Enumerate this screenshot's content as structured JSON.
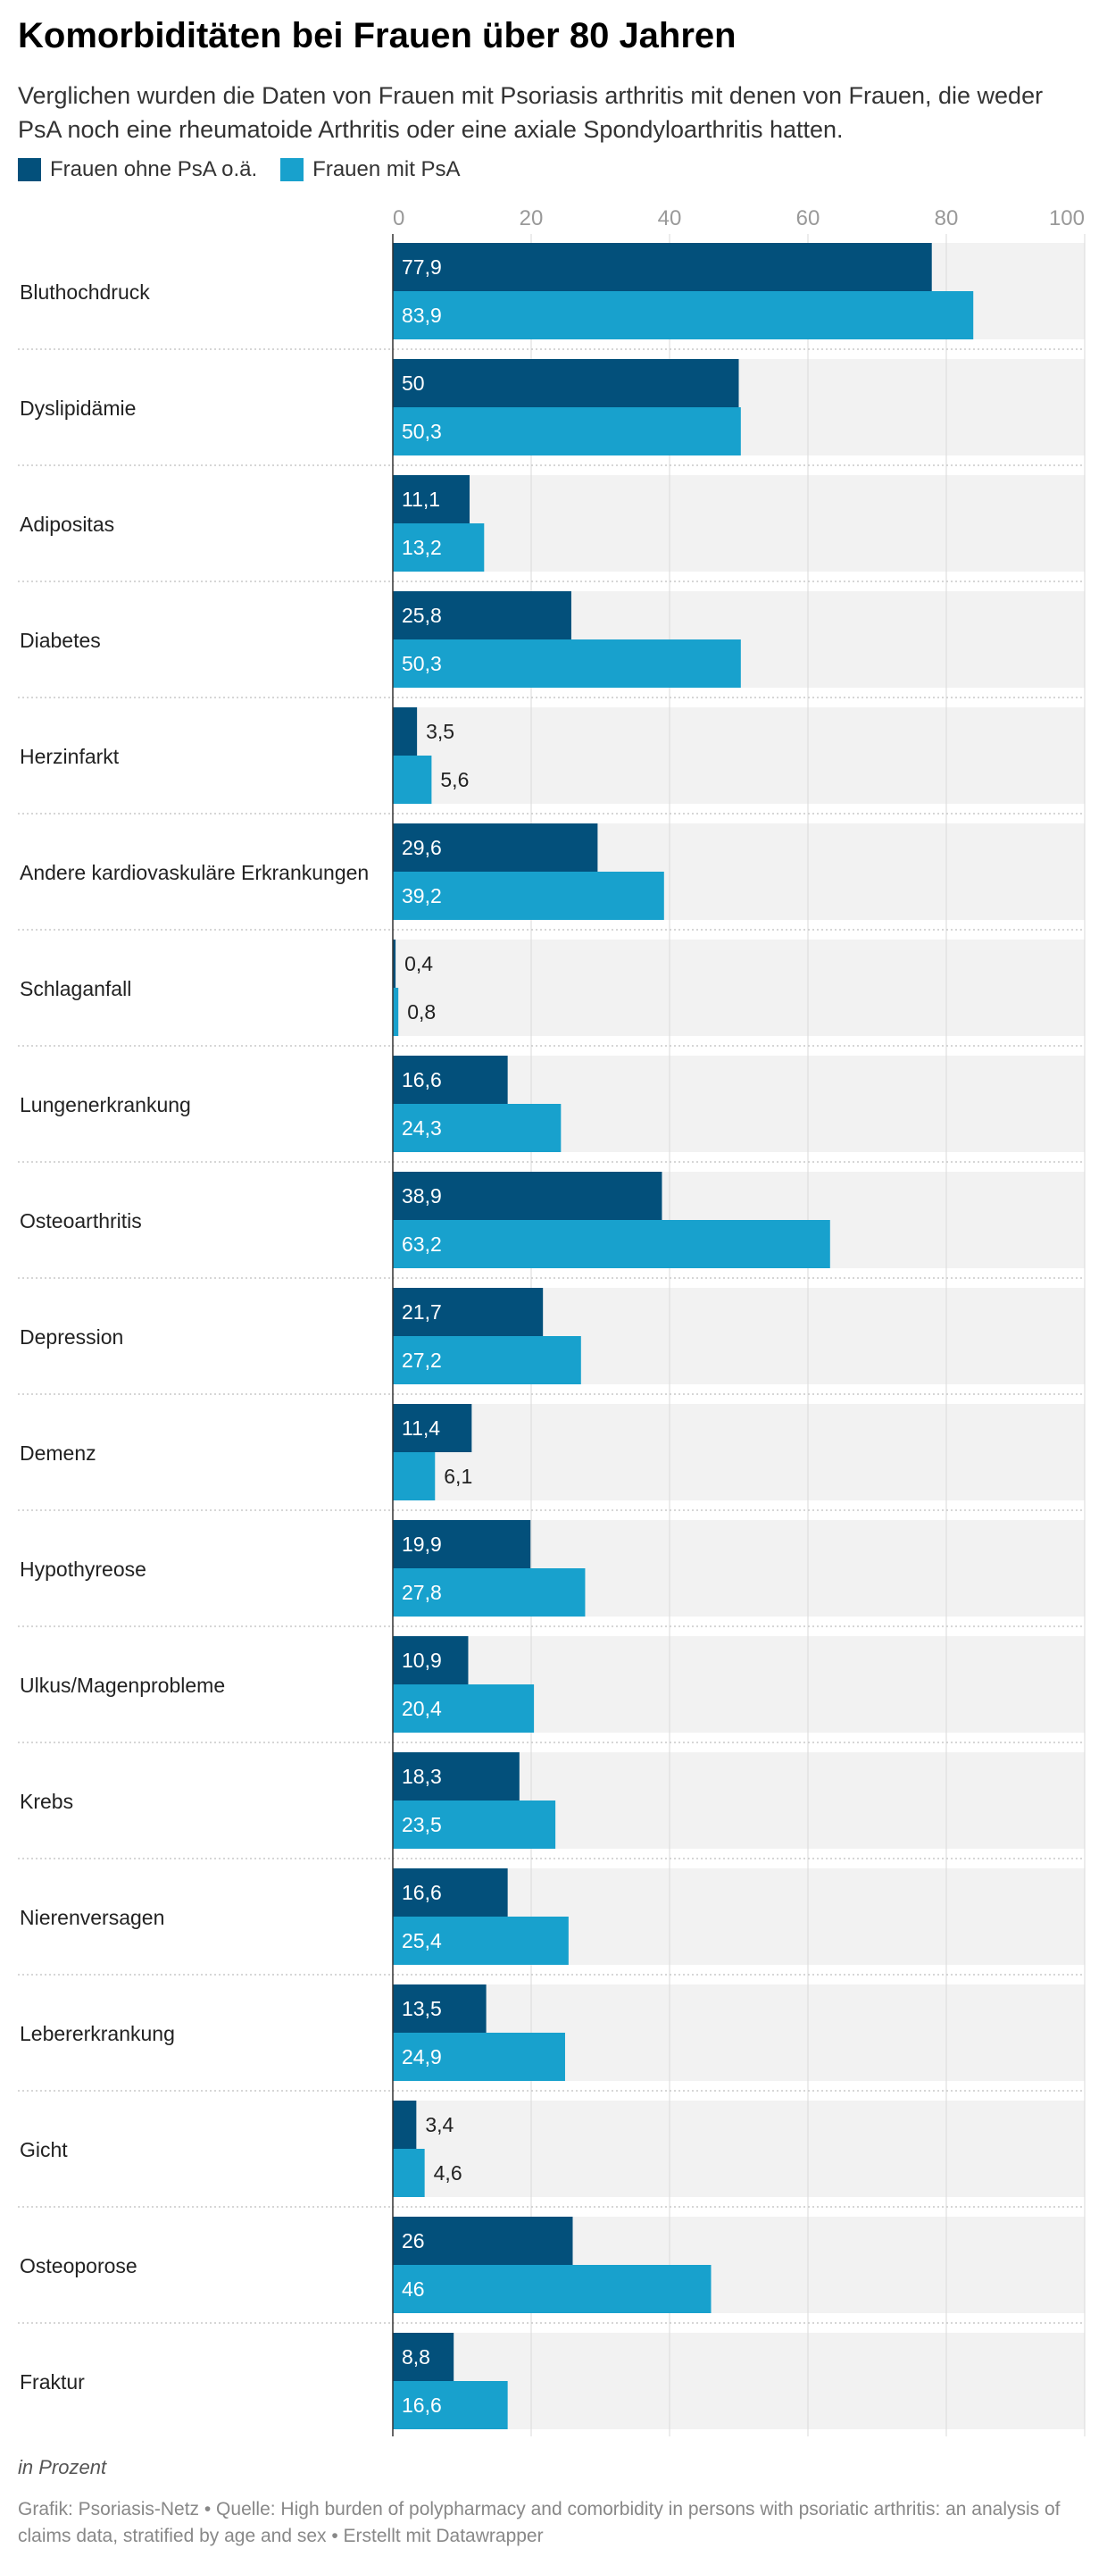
{
  "title": "Komorbiditäten bei Frauen über 80 Jahren",
  "subtitle": "Verglichen wurden die Daten von Frauen mit Psoriasis arthritis mit denen von Frauen, die weder PsA noch eine rheumatoide Arthritis oder eine axiale Spondyloarthritis hatten.",
  "legend": [
    {
      "label": "Frauen ohne PsA o.ä.",
      "color": "#03507b"
    },
    {
      "label": "Frauen mit PsA",
      "color": "#18a1cd"
    }
  ],
  "footer": {
    "note": "in Prozent",
    "source": "Grafik: Psoriasis-Netz • Quelle: High burden of polypharmacy and comorbidity in persons with psoriatic arthritis: an analysis of claims data, stratified by age and sex • Erstellt mit Datawrapper"
  },
  "chart_data": {
    "type": "bar",
    "orientation": "horizontal",
    "categories": [
      "Bluthochdruck",
      "Dyslipidämie",
      "Adipositas",
      "Diabetes",
      "Herzinfarkt",
      "Andere kardiovaskuläre Erkrankungen",
      "Schlaganfall",
      "Lungenerkrankung",
      "Osteoarthritis",
      "Depression",
      "Demenz",
      "Hypothyreose",
      "Ulkus/Magenprobleme",
      "Krebs",
      "Nierenversagen",
      "Lebererkrankung",
      "Gicht",
      "Osteoporose",
      "Fraktur"
    ],
    "series": [
      {
        "name": "Frauen ohne PsA o.ä.",
        "color": "#03507b",
        "values": [
          77.9,
          50,
          11.1,
          25.8,
          3.5,
          29.6,
          0.4,
          16.6,
          38.9,
          21.7,
          11.4,
          19.9,
          10.9,
          18.3,
          16.6,
          13.5,
          3.4,
          26,
          8.8
        ],
        "labels": [
          "77,9",
          "50",
          "11,1",
          "25,8",
          "3,5",
          "29,6",
          "0,4",
          "16,6",
          "38,9",
          "21,7",
          "11,4",
          "19,9",
          "10,9",
          "18,3",
          "16,6",
          "13,5",
          "3,4",
          "26",
          "8,8"
        ]
      },
      {
        "name": "Frauen mit PsA",
        "color": "#18a1cd",
        "values": [
          83.9,
          50.3,
          13.2,
          50.3,
          5.6,
          39.2,
          0.8,
          24.3,
          63.2,
          27.2,
          6.1,
          27.8,
          20.4,
          23.5,
          25.4,
          24.9,
          4.6,
          46,
          16.6
        ],
        "labels": [
          "83,9",
          "50,3",
          "13,2",
          "50,3",
          "5,6",
          "39,2",
          "0,8",
          "24,3",
          "63,2",
          "27,2",
          "6,1",
          "27,8",
          "20,4",
          "23,5",
          "25,4",
          "24,9",
          "4,6",
          "46",
          "16,6"
        ]
      }
    ],
    "xlim": [
      0,
      100
    ],
    "ticks": [
      "0",
      "20",
      "40",
      "60",
      "80",
      "100"
    ],
    "tick_values": [
      0,
      20,
      40,
      60,
      80,
      100
    ],
    "grid": true
  }
}
